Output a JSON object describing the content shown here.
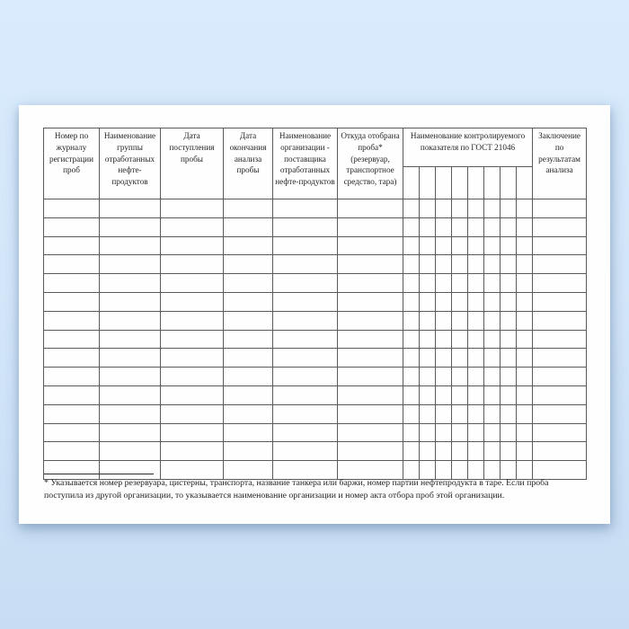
{
  "document": {
    "kind": "blank-registration-journal-form",
    "footnote": {
      "text": "* Указывается номер резервуара, цистерны, транспорта, название танкера или баржи, номер партии нефтепродукта в таре. Если проба поступила из другой организации, то указывается наименование организации и номер акта отбора проб этой организации."
    }
  },
  "table": {
    "header_cells": [
      {
        "label": "Номер по журналу регистрации проб"
      },
      {
        "label": "Наименование группы отработанных нефте-продуктов"
      },
      {
        "label": "Дата поступления пробы"
      },
      {
        "label": "Дата окончания анализа пробы"
      },
      {
        "label": "Наименование организации - поставщика отработанных нефте-продуктов"
      },
      {
        "label": "Откуда отобрана проба* (резервуар, транспортное средство, тара)"
      },
      {
        "label": "Наименование контролируемого показателя по ГОСТ 21046"
      },
      {
        "label": "Заключение по результатам анализа"
      }
    ],
    "gost_subcolumns": 8,
    "body_rows": 15,
    "body_columns": 15,
    "cells_empty": true
  },
  "colors": {
    "background_top": "#d9ebfc",
    "background_bottom": "#c8ddf3",
    "sheet": "#fefefe",
    "table_border": "#5a5a5a",
    "text": "#262626"
  }
}
